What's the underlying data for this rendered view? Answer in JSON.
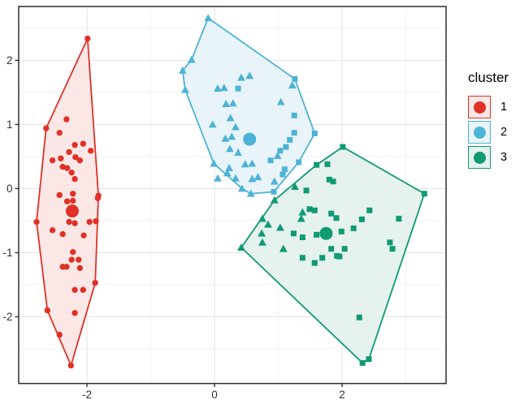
{
  "legend": {
    "title": "cluster",
    "items": [
      {
        "label": "1",
        "color": "#e03127",
        "fill": "#fbe8e6"
      },
      {
        "label": "2",
        "color": "#4db3d6",
        "fill": "#e8f4f9"
      },
      {
        "label": "3",
        "color": "#0f9a74",
        "fill": "#e5f2ee"
      }
    ]
  },
  "theme": {
    "background": "#ffffff",
    "panel_border": "#2f2f2f",
    "grid_major": "#e4e4e4",
    "grid_minor": "#f2f2f2",
    "tick_color": "#333333",
    "tick_label_color": "#333333"
  },
  "chart_data": {
    "type": "scatter",
    "title": "",
    "xlabel": "",
    "ylabel": "",
    "xlim": [
      -3.07,
      3.63
    ],
    "ylim": [
      -3.04,
      2.84
    ],
    "x_ticks": [
      -2,
      0,
      2
    ],
    "y_ticks": [
      -2,
      -1,
      0,
      1,
      2
    ],
    "x_minor": [
      -3,
      -1,
      1,
      3
    ],
    "y_minor": [
      -2.5,
      -1.5,
      -0.5,
      0.5,
      1.5,
      2.5
    ],
    "grid": true,
    "legend_position": "right",
    "marker_shapes_legend": "shape encodes original group: c=circle, t=triangle, s=square",
    "clusters": [
      {
        "name": "1",
        "color": "#e03127",
        "fill": "#fbe8e6",
        "centroid": [
          -2.23,
          -0.35
        ],
        "hull": [
          [
            -1.99,
            2.34
          ],
          [
            -1.82,
            -0.11
          ],
          [
            -1.87,
            -1.47
          ],
          [
            -2.25,
            -2.76
          ],
          [
            -2.62,
            -1.9
          ],
          [
            -2.79,
            -0.52
          ],
          [
            -2.64,
            0.94
          ]
        ],
        "points": [
          [
            -2.32,
            1.08,
            "c"
          ],
          [
            -2.43,
            0.87,
            "c"
          ],
          [
            -2.19,
            0.68,
            "c"
          ],
          [
            -2.06,
            0.7,
            "c"
          ],
          [
            -2.28,
            0.57,
            "c"
          ],
          [
            -1.94,
            0.59,
            "c"
          ],
          [
            -2.54,
            0.44,
            "c"
          ],
          [
            -2.41,
            0.47,
            "c"
          ],
          [
            -2.18,
            0.49,
            "c"
          ],
          [
            -2.11,
            0.44,
            "c"
          ],
          [
            -2.38,
            0.34,
            "c"
          ],
          [
            -2.31,
            0.32,
            "c"
          ],
          [
            -2.24,
            0.25,
            "c"
          ],
          [
            -2.19,
            0.15,
            "c"
          ],
          [
            -2.43,
            -0.1,
            "c"
          ],
          [
            -2.22,
            -0.08,
            "c"
          ],
          [
            -1.83,
            -0.15,
            "c"
          ],
          [
            -2.31,
            -0.2,
            "c"
          ],
          [
            -2.22,
            -0.19,
            "c"
          ],
          [
            -2.28,
            -0.52,
            "c"
          ],
          [
            -2.19,
            -0.54,
            "c"
          ],
          [
            -1.96,
            -0.52,
            "c"
          ],
          [
            -1.86,
            -0.51,
            "c"
          ],
          [
            -2.54,
            -0.65,
            "c"
          ],
          [
            -2.38,
            -0.71,
            "c"
          ],
          [
            -2.05,
            -0.73,
            "c"
          ],
          [
            -2.22,
            -0.99,
            "c"
          ],
          [
            -2.24,
            -1.11,
            "c"
          ],
          [
            -2.13,
            -1.11,
            "c"
          ],
          [
            -2.38,
            -1.22,
            "c"
          ],
          [
            -2.32,
            -1.22,
            "c"
          ],
          [
            -2.11,
            -1.24,
            "c"
          ],
          [
            -2.19,
            -1.58,
            "c"
          ],
          [
            -2.06,
            -1.58,
            "c"
          ],
          [
            -2.19,
            -1.94,
            "c"
          ],
          [
            -2.43,
            -2.28,
            "c"
          ],
          [
            -1.99,
            2.34,
            "c"
          ],
          [
            -2.64,
            0.94,
            "c"
          ],
          [
            -2.79,
            -0.52,
            "c"
          ],
          [
            -2.62,
            -1.9,
            "c"
          ],
          [
            -2.25,
            -2.76,
            "c"
          ],
          [
            -1.87,
            -1.47,
            "c"
          ],
          [
            -1.82,
            -0.11,
            "c"
          ]
        ]
      },
      {
        "name": "2",
        "color": "#4db3d6",
        "fill": "#e8f4f9",
        "centroid": [
          0.55,
          0.77
        ],
        "hull": [
          [
            -0.1,
            2.66
          ],
          [
            1.26,
            1.71
          ],
          [
            1.57,
            0.86
          ],
          [
            1.32,
            0.41
          ],
          [
            0.93,
            -0.05
          ],
          [
            0.57,
            -0.08
          ],
          [
            0.43,
            0.0
          ],
          [
            -0.01,
            0.39
          ],
          [
            -0.46,
            1.54
          ],
          [
            -0.5,
            1.84
          ],
          [
            -0.36,
            2.01
          ]
        ],
        "points": [
          [
            -0.03,
            1.0,
            "t"
          ],
          [
            0.25,
            1.1,
            "t"
          ],
          [
            0.33,
            0.96,
            "t"
          ],
          [
            0.17,
            0.78,
            "t"
          ],
          [
            0.27,
            0.81,
            "t"
          ],
          [
            0.24,
            0.62,
            "t"
          ],
          [
            0.37,
            0.56,
            "t"
          ],
          [
            0.48,
            0.38,
            "t"
          ],
          [
            0.59,
            0.39,
            "t"
          ],
          [
            0.23,
            0.32,
            "t"
          ],
          [
            0.2,
            0.24,
            "t"
          ],
          [
            -0.01,
            0.39,
            "t"
          ],
          [
            0.05,
            0.16,
            "t"
          ],
          [
            0.33,
            0.16,
            "t"
          ],
          [
            0.59,
            0.15,
            "t"
          ],
          [
            0.68,
            0.18,
            "t"
          ],
          [
            0.43,
            0.0,
            "t"
          ],
          [
            0.57,
            -0.08,
            "t"
          ],
          [
            0.42,
            1.73,
            "t"
          ],
          [
            0.55,
            1.76,
            "t"
          ],
          [
            0.05,
            1.56,
            "t"
          ],
          [
            0.15,
            1.57,
            "t"
          ],
          [
            0.18,
            1.32,
            "t"
          ],
          [
            0.29,
            1.33,
            "t"
          ],
          [
            1.04,
            1.35,
            "t"
          ],
          [
            1.22,
            1.61,
            "t"
          ],
          [
            0.99,
            0.51,
            "t"
          ],
          [
            0.94,
            0.11,
            "t"
          ],
          [
            -0.1,
            2.66,
            "t"
          ],
          [
            -0.36,
            2.01,
            "t"
          ],
          [
            -0.5,
            1.84,
            "t"
          ],
          [
            -0.46,
            1.54,
            "t"
          ],
          [
            0.93,
            -0.05,
            "s"
          ],
          [
            0.37,
            1.56,
            "s"
          ],
          [
            1.26,
            1.71,
            "s"
          ],
          [
            1.25,
            1.14,
            "s"
          ],
          [
            1.25,
            0.87,
            "s"
          ],
          [
            1.18,
            0.76,
            "s"
          ],
          [
            1.12,
            0.65,
            "s"
          ],
          [
            1.03,
            0.59,
            "s"
          ],
          [
            1.32,
            0.41,
            "s"
          ],
          [
            1.57,
            0.86,
            "s"
          ],
          [
            1.1,
            0.3,
            "s"
          ],
          [
            1.07,
            0.22,
            "s"
          ],
          [
            0.88,
            0.44,
            "s"
          ]
        ]
      },
      {
        "name": "3",
        "color": "#0f9a74",
        "fill": "#e5f2ee",
        "centroid": [
          1.75,
          -0.7
        ],
        "hull": [
          [
            2.01,
            0.65
          ],
          [
            3.29,
            -0.08
          ],
          [
            2.42,
            -2.66
          ],
          [
            2.32,
            -2.72
          ],
          [
            0.42,
            -0.92
          ],
          [
            0.94,
            -0.18
          ],
          [
            1.6,
            0.37
          ]
        ],
        "points": [
          [
            1.8,
            0.14,
            "s"
          ],
          [
            1.86,
            0.11,
            "s"
          ],
          [
            1.44,
            -0.03,
            "s"
          ],
          [
            1.49,
            -0.32,
            "s"
          ],
          [
            1.57,
            -0.34,
            "s"
          ],
          [
            1.83,
            -0.39,
            "s"
          ],
          [
            1.91,
            -0.46,
            "s"
          ],
          [
            2.43,
            -0.34,
            "s"
          ],
          [
            2.31,
            -0.48,
            "s"
          ],
          [
            2.89,
            -0.47,
            "s"
          ],
          [
            1.24,
            -0.7,
            "s"
          ],
          [
            1.38,
            -0.76,
            "s"
          ],
          [
            1.6,
            -0.72,
            "s"
          ],
          [
            1.99,
            -0.67,
            "s"
          ],
          [
            2.18,
            -0.62,
            "s"
          ],
          [
            1.83,
            -0.94,
            "s"
          ],
          [
            2.04,
            -0.94,
            "s"
          ],
          [
            2.75,
            -0.84,
            "s"
          ],
          [
            2.79,
            -0.94,
            "s"
          ],
          [
            1.38,
            -1.08,
            "s"
          ],
          [
            1.69,
            -1.08,
            "s"
          ],
          [
            1.92,
            -1.05,
            "s"
          ],
          [
            1.96,
            -1.06,
            "s"
          ],
          [
            1.57,
            -1.16,
            "s"
          ],
          [
            2.27,
            -2.01,
            "s"
          ],
          [
            2.32,
            -2.72,
            "s"
          ],
          [
            2.42,
            -2.66,
            "s"
          ],
          [
            3.29,
            -0.08,
            "s"
          ],
          [
            2.01,
            0.65,
            "s"
          ],
          [
            1.6,
            0.37,
            "s"
          ],
          [
            1.77,
            0.38,
            "s"
          ],
          [
            1.38,
            -0.37,
            "t"
          ],
          [
            1.36,
            -0.47,
            "t"
          ],
          [
            0.75,
            -0.47,
            "t"
          ],
          [
            0.84,
            -0.56,
            "t"
          ],
          [
            1.03,
            -0.61,
            "t"
          ],
          [
            0.74,
            -0.7,
            "t"
          ],
          [
            0.75,
            -0.84,
            "t"
          ],
          [
            1.08,
            -0.94,
            "t"
          ],
          [
            0.42,
            -0.92,
            "t"
          ],
          [
            0.94,
            -0.18,
            "t"
          ],
          [
            1.26,
            0.03,
            "t"
          ]
        ]
      }
    ]
  }
}
